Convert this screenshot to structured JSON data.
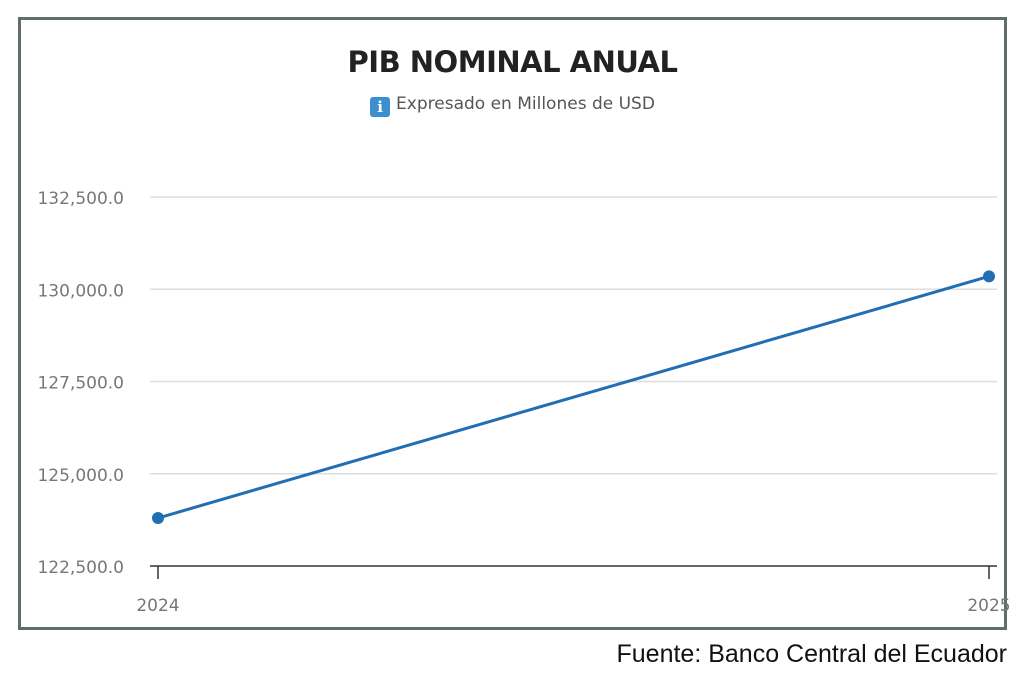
{
  "chart": {
    "title": "PIB NOMINAL ANUAL",
    "subtitle": "Expresado en Millones de USD",
    "info_icon": "info-icon"
  },
  "source": "Fuente: Banco Central del Ecuador",
  "colors": {
    "line": "#1f6fb2",
    "grid": "#dddddd",
    "axis": "#333333",
    "tick_label": "#777777",
    "frame": "#5f6d6d"
  },
  "chart_data": {
    "type": "line",
    "title": "PIB NOMINAL ANUAL",
    "subtitle": "Expresado en Millones de USD",
    "xlabel": "",
    "ylabel": "",
    "x": [
      "2024",
      "2025"
    ],
    "series": [
      {
        "values": [
          123800,
          130350
        ]
      }
    ],
    "ylim": [
      122500,
      132500
    ],
    "yticks": [
      122500,
      125000,
      127500,
      130000,
      132500
    ],
    "ytick_labels": [
      "122,500.0",
      "125,000.0",
      "127,500.0",
      "130,000.0",
      "132,500.0"
    ],
    "grid": true,
    "legend": "none"
  }
}
